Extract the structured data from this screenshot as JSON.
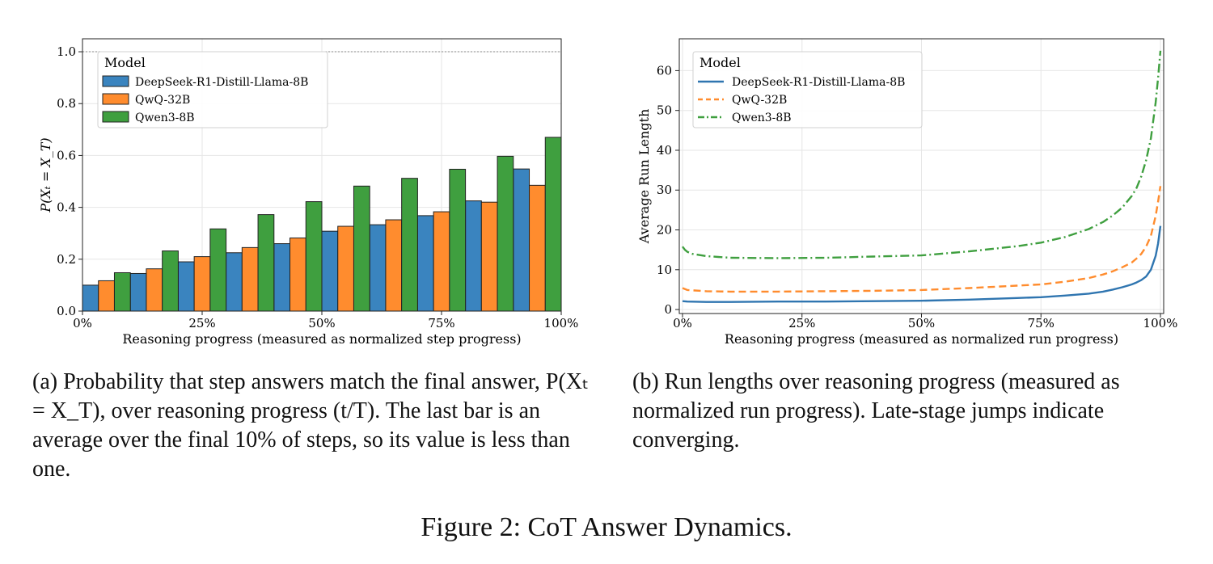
{
  "chart_data": [
    {
      "type": "bar",
      "xlabel": "Reasoning progress (measured as normalized step progress)",
      "ylabel": "P(Xₜ = X_T)",
      "xticks": [
        "0%",
        "25%",
        "50%",
        "75%",
        "100%"
      ],
      "yticks": [
        "0.0",
        "0.2",
        "0.4",
        "0.6",
        "0.8",
        "1.0"
      ],
      "xlim": [
        0,
        100
      ],
      "ylim": [
        0,
        1.05
      ],
      "reference_line": 1.0,
      "grid": true,
      "legend_title": "Model",
      "legend_position": "top-left",
      "categories": [
        "0-10%",
        "10-20%",
        "20-30%",
        "30-40%",
        "40-50%",
        "50-60%",
        "60-70%",
        "70-80%",
        "80-90%",
        "90-100%"
      ],
      "bin_centers": [
        5,
        15,
        25,
        35,
        45,
        55,
        65,
        75,
        85,
        95
      ],
      "series": [
        {
          "name": "DeepSeek-R1-Distill-Llama-8B",
          "color": "#3a84bf",
          "values": [
            0.1,
            0.145,
            0.19,
            0.225,
            0.26,
            0.308,
            0.333,
            0.368,
            0.425,
            0.548
          ]
        },
        {
          "name": "QwQ-32B",
          "color": "#ff8c2e",
          "values": [
            0.117,
            0.163,
            0.21,
            0.245,
            0.282,
            0.327,
            0.352,
            0.383,
            0.42,
            0.485
          ]
        },
        {
          "name": "Qwen3-8B",
          "color": "#3f9f3f",
          "values": [
            0.148,
            0.232,
            0.317,
            0.372,
            0.422,
            0.482,
            0.512,
            0.547,
            0.597,
            0.67
          ]
        }
      ]
    },
    {
      "type": "line",
      "xlabel": "Reasoning progress (measured as normalized run progress)",
      "ylabel": "Average Run Length",
      "xticks": [
        "0%",
        "25%",
        "50%",
        "75%",
        "100%"
      ],
      "yticks": [
        "0",
        "10",
        "20",
        "30",
        "40",
        "50",
        "60"
      ],
      "xlim": [
        0,
        100
      ],
      "ylim": [
        -1,
        68
      ],
      "grid": true,
      "legend_title": "Model",
      "legend_position": "top-left",
      "series": [
        {
          "name": "DeepSeek-R1-Distill-Llama-8B",
          "color": "#2f75b0",
          "style": "solid",
          "x": [
            0,
            1,
            5,
            10,
            20,
            30,
            40,
            50,
            60,
            70,
            75,
            80,
            85,
            88,
            90,
            92,
            94,
            95,
            96,
            97,
            98,
            99,
            99.5,
            100
          ],
          "y": [
            2.1,
            2.0,
            1.9,
            1.9,
            2.0,
            2.0,
            2.1,
            2.2,
            2.5,
            2.9,
            3.1,
            3.5,
            4.0,
            4.5,
            5.0,
            5.6,
            6.3,
            6.8,
            7.4,
            8.3,
            10.0,
            13.5,
            16.5,
            21.0
          ]
        },
        {
          "name": "QwQ-32B",
          "color": "#ff8c2e",
          "style": "dashed",
          "x": [
            0,
            1,
            5,
            10,
            20,
            30,
            40,
            50,
            60,
            70,
            75,
            80,
            85,
            88,
            90,
            92,
            94,
            95,
            96,
            97,
            98,
            99,
            99.5,
            100
          ],
          "y": [
            5.4,
            4.9,
            4.6,
            4.5,
            4.5,
            4.6,
            4.7,
            4.9,
            5.4,
            6.0,
            6.3,
            7.0,
            7.9,
            8.8,
            9.6,
            10.6,
            11.8,
            12.8,
            14.0,
            15.8,
            18.5,
            23.5,
            27.0,
            31.0
          ]
        },
        {
          "name": "Qwen3-8B",
          "color": "#3f9f3f",
          "style": "dashdot",
          "x": [
            0,
            0.5,
            1,
            2,
            5,
            10,
            20,
            30,
            40,
            50,
            60,
            70,
            75,
            80,
            85,
            88,
            90,
            92,
            94,
            95,
            96,
            97,
            98,
            99,
            99.5,
            100
          ],
          "y": [
            15.8,
            15.0,
            14.5,
            14.0,
            13.4,
            13.0,
            12.9,
            13.0,
            13.3,
            13.6,
            14.6,
            15.9,
            16.8,
            18.2,
            20.2,
            22.0,
            23.6,
            25.6,
            28.5,
            30.5,
            33.5,
            37.5,
            43.0,
            52.0,
            58.0,
            65.0
          ]
        }
      ]
    }
  ],
  "captions": {
    "a": "(a) Probability that step answers match the final answer, P(Xₜ = X_T), over reasoning progress (t/T). The last bar is an average over the final 10% of steps, so its value is less than one.",
    "b": "(b) Run lengths over reasoning progress (measured as normalized run progress). Late-stage jumps indicate converging.",
    "figure": "Figure 2: CoT Answer Dynamics."
  }
}
